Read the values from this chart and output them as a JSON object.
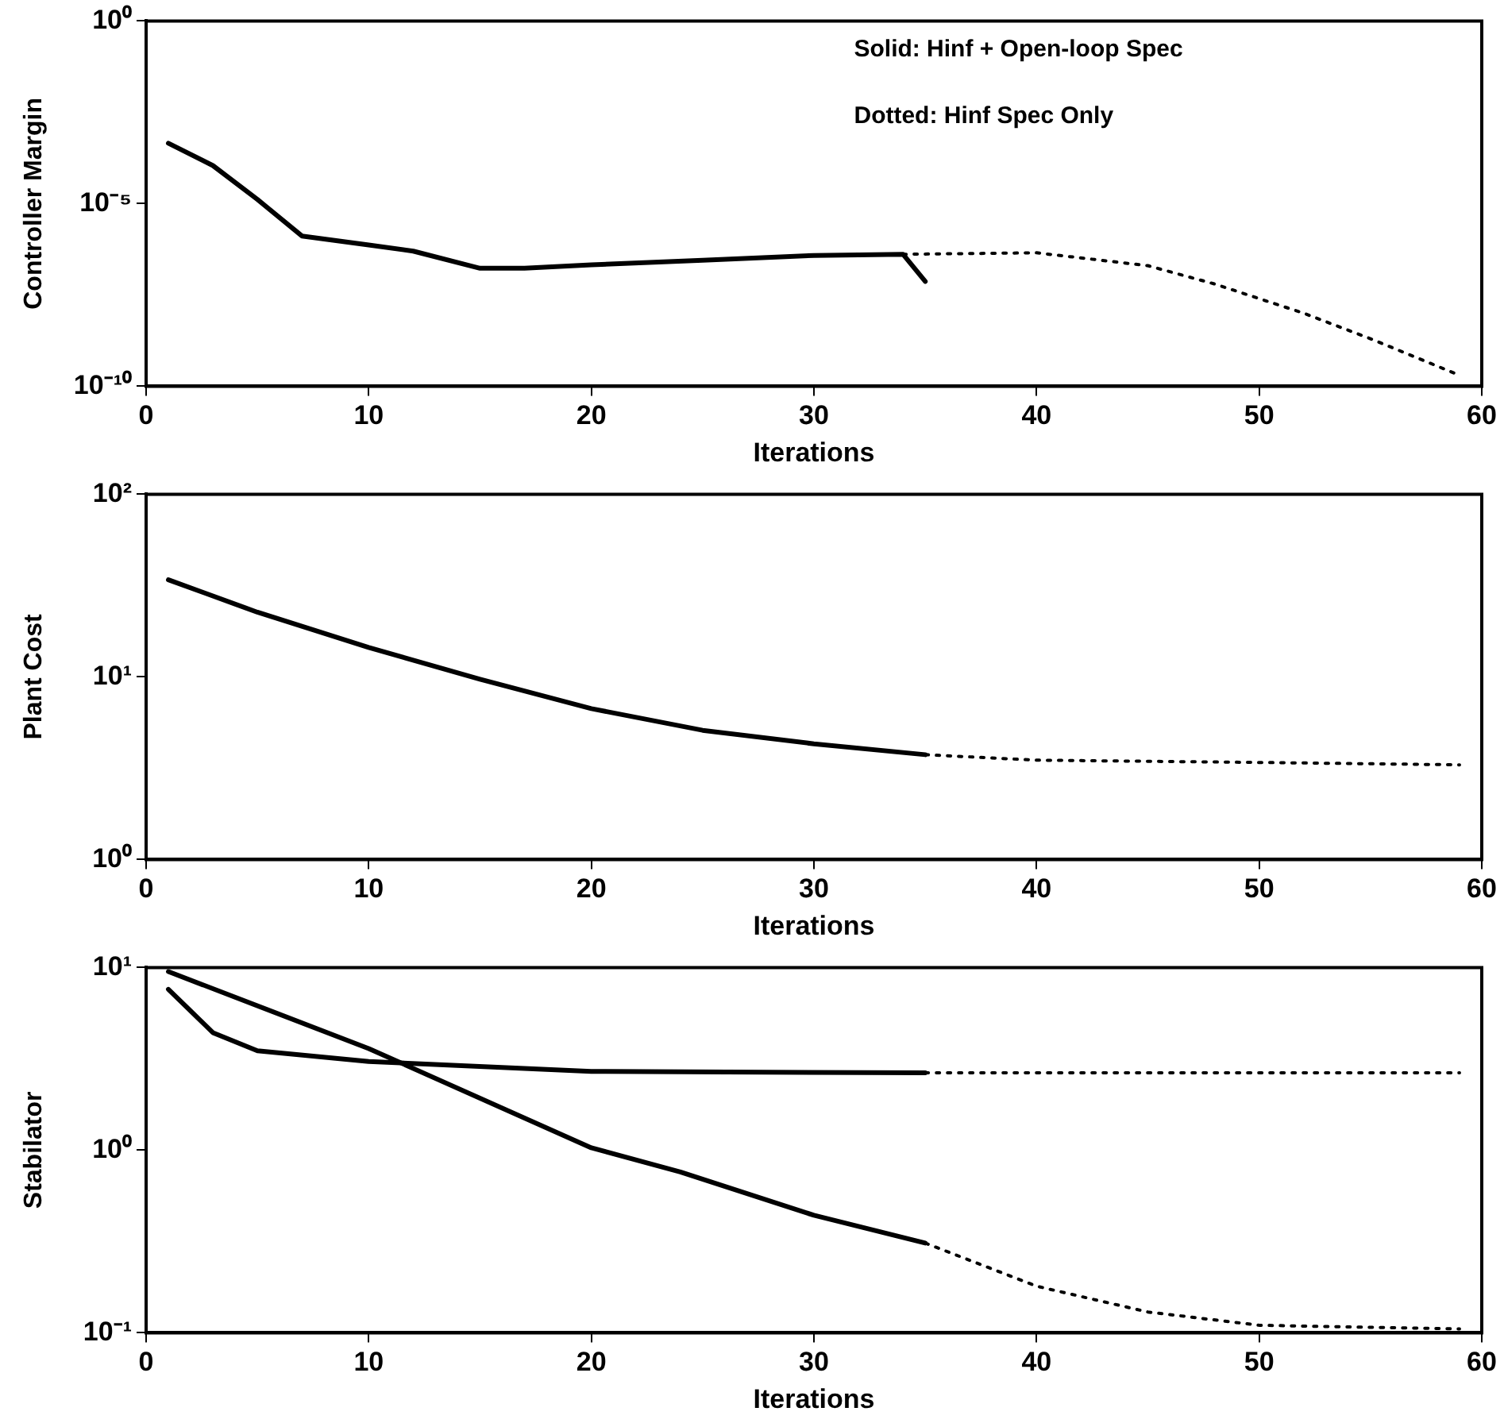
{
  "chart_data": [
    {
      "type": "line",
      "ylabel": "Controller Margin",
      "xlabel": "Iterations",
      "log": "y",
      "grid": false,
      "legend": false,
      "marker": "none",
      "xlim": [
        0,
        60
      ],
      "xticks": [
        0,
        10,
        20,
        30,
        40,
        50,
        60
      ],
      "ylim": [
        1e-10,
        1
      ],
      "yticks": [
        {
          "value": 1e-10,
          "label": "10⁻¹⁰"
        },
        {
          "value": 1e-05,
          "label": "10⁻⁵"
        },
        {
          "value": 1,
          "label": "10⁰"
        }
      ],
      "annotations": [
        "Solid: Hinf + Open-loop Spec",
        "Dotted: Hinf Spec Only"
      ],
      "series": [
        {
          "color": "#000000",
          "line_style": "solid",
          "x": [
            1,
            3,
            5,
            7,
            10,
            12,
            15,
            17,
            20,
            25,
            30,
            34,
            35
          ],
          "values": [
            0.00045,
            0.00011,
            1.3e-05,
            1.3e-06,
            7.4e-07,
            5e-07,
            1.7e-07,
            1.7e-07,
            2.1e-07,
            2.8e-07,
            3.8e-07,
            4.1e-07,
            7.4e-08
          ]
        },
        {
          "color": "#000000",
          "line_style": "dotted",
          "x": [
            34,
            40,
            45,
            48,
            52,
            55,
            59
          ],
          "values": [
            4.1e-07,
            4.5e-07,
            2e-07,
            6.3e-08,
            1e-08,
            2e-09,
            2e-10
          ]
        }
      ]
    },
    {
      "type": "line",
      "ylabel": "Plant Cost",
      "xlabel": "Iterations",
      "log": "y",
      "grid": false,
      "legend": false,
      "marker": "none",
      "xlim": [
        0,
        60
      ],
      "xticks": [
        0,
        10,
        20,
        30,
        40,
        50,
        60
      ],
      "ylim": [
        1,
        100
      ],
      "yticks": [
        {
          "value": 1,
          "label": "10⁰"
        },
        {
          "value": 10,
          "label": "10¹"
        },
        {
          "value": 100,
          "label": "10²"
        }
      ],
      "series": [
        {
          "color": "#000000",
          "line_style": "solid",
          "x": [
            1,
            5,
            10,
            15,
            20,
            25,
            30,
            35
          ],
          "values": [
            34,
            22.6,
            14.5,
            9.7,
            6.7,
            5.1,
            4.3,
            3.75
          ]
        },
        {
          "color": "#000000",
          "line_style": "dotted",
          "x": [
            35,
            40,
            50,
            59
          ],
          "values": [
            3.75,
            3.5,
            3.4,
            3.3
          ]
        }
      ]
    },
    {
      "type": "line",
      "ylabel": "Stabilator",
      "xlabel": "Iterations",
      "log": "y",
      "grid": false,
      "legend": false,
      "marker": "none",
      "xlim": [
        0,
        60
      ],
      "xticks": [
        0,
        10,
        20,
        30,
        40,
        50,
        60
      ],
      "ylim": [
        0.1,
        10
      ],
      "yticks": [
        {
          "value": 0.1,
          "label": "10⁻¹"
        },
        {
          "value": 1,
          "label": "10⁰"
        },
        {
          "value": 10,
          "label": "10¹"
        }
      ],
      "series": [
        {
          "color": "#000000",
          "line_style": "solid",
          "x": [
            1,
            3,
            5,
            10,
            20,
            35
          ],
          "values": [
            7.6,
            4.4,
            3.5,
            3.06,
            2.7,
            2.65
          ]
        },
        {
          "color": "#000000",
          "line_style": "dotted",
          "x": [
            35,
            59
          ],
          "values": [
            2.65,
            2.65
          ]
        },
        {
          "color": "#000000",
          "line_style": "solid",
          "x": [
            1,
            10,
            20,
            24,
            30,
            35
          ],
          "values": [
            9.5,
            3.6,
            1.03,
            0.76,
            0.44,
            0.31
          ]
        },
        {
          "color": "#000000",
          "line_style": "dotted",
          "x": [
            35,
            40,
            45,
            50,
            59
          ],
          "values": [
            0.31,
            0.18,
            0.13,
            0.11,
            0.105
          ]
        }
      ]
    }
  ]
}
